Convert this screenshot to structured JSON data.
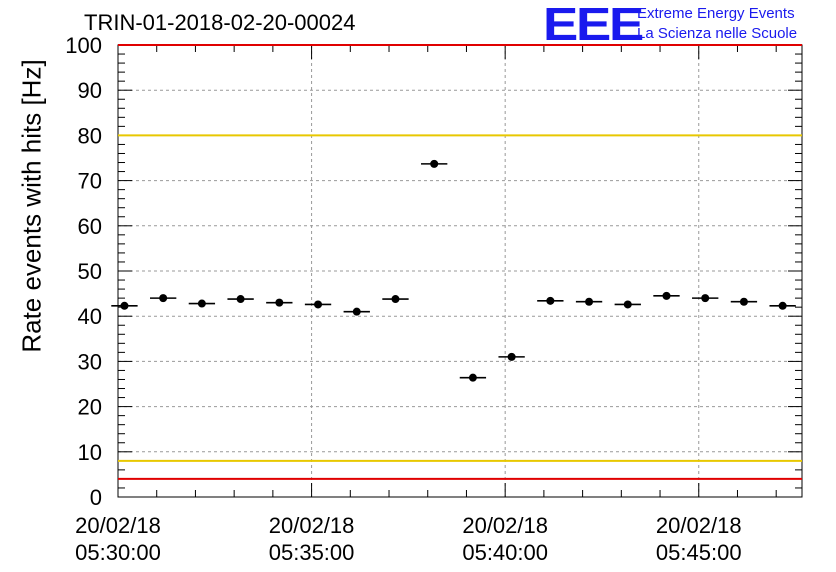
{
  "title": "TRIN-01-2018-02-20-00024",
  "logo": {
    "mark": "EEE",
    "line1": "Extreme Energy Events",
    "line2": "La Scienza nelle Scuole",
    "color": "#1a1aee"
  },
  "chart_data": {
    "type": "scatter",
    "title": "TRIN-01-2018-02-20-00024",
    "ylabel": "Rate events with hits [Hz]",
    "xlabel": "",
    "ylim": [
      0,
      100
    ],
    "yticks": [
      0,
      10,
      20,
      30,
      40,
      50,
      60,
      70,
      80,
      90,
      100
    ],
    "xlim": [
      "05:30:00",
      "05:47:40"
    ],
    "xticks": [
      {
        "date": "20/02/18",
        "time": "05:30:00",
        "minutes": 0
      },
      {
        "date": "20/02/18",
        "time": "05:35:00",
        "minutes": 5
      },
      {
        "date": "20/02/18",
        "time": "05:40:00",
        "minutes": 10
      },
      {
        "date": "20/02/18",
        "time": "05:45:00",
        "minutes": 15
      }
    ],
    "grid": true,
    "bin_width_minutes": 1,
    "series": [
      {
        "x": [
          "05:30:10",
          "05:31:10",
          "05:32:10",
          "05:33:10",
          "05:34:10",
          "05:35:10",
          "05:36:10",
          "05:37:10",
          "05:38:10",
          "05:39:10",
          "05:40:10",
          "05:41:10",
          "05:42:10",
          "05:43:10",
          "05:44:10",
          "05:45:10",
          "05:46:10",
          "05:47:10"
        ],
        "y": [
          42.3,
          44.0,
          42.8,
          43.8,
          43.0,
          42.6,
          41.0,
          43.8,
          73.7,
          26.4,
          31.0,
          43.4,
          43.2,
          42.6,
          44.5,
          44.0,
          43.2,
          42.3
        ],
        "color": "#000000"
      }
    ],
    "reference_lines": [
      {
        "y": 80,
        "color": "#e8c800"
      },
      {
        "y": 8,
        "color": "#e8c800"
      },
      {
        "y": 100,
        "color": "#e00000"
      },
      {
        "y": 4,
        "color": "#e00000"
      }
    ]
  }
}
